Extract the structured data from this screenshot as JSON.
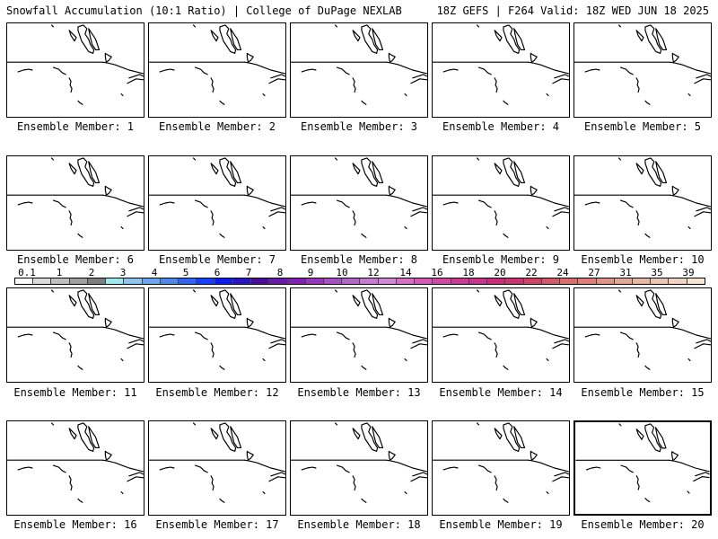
{
  "header": {
    "title": "Snowfall Accumulation (10:1 Ratio) | College of DuPage NEXLAB",
    "run_info": "18Z GEFS | F264 Valid: 18Z WED JUN 18 2025"
  },
  "panels": [
    {
      "label": "Ensemble Member: 1"
    },
    {
      "label": "Ensemble Member: 2"
    },
    {
      "label": "Ensemble Member: 3"
    },
    {
      "label": "Ensemble Member: 4"
    },
    {
      "label": "Ensemble Member: 5"
    },
    {
      "label": "Ensemble Member: 6"
    },
    {
      "label": "Ensemble Member: 7"
    },
    {
      "label": "Ensemble Member: 8"
    },
    {
      "label": "Ensemble Member: 9"
    },
    {
      "label": "Ensemble Member: 10"
    },
    {
      "label": "Ensemble Member: 11"
    },
    {
      "label": "Ensemble Member: 12"
    },
    {
      "label": "Ensemble Member: 13"
    },
    {
      "label": "Ensemble Member: 14"
    },
    {
      "label": "Ensemble Member: 15"
    },
    {
      "label": "Ensemble Member: 16"
    },
    {
      "label": "Ensemble Member: 17"
    },
    {
      "label": "Ensemble Member: 18"
    },
    {
      "label": "Ensemble Member: 19"
    },
    {
      "label": "Ensemble Member: 20"
    }
  ],
  "colorbar": {
    "labels": [
      "0.1",
      "1",
      "2",
      "3",
      "4",
      "5",
      "6",
      "7",
      "8",
      "9",
      "10",
      "12",
      "14",
      "16",
      "18",
      "20",
      "22",
      "24",
      "27",
      "31",
      "35",
      "39"
    ],
    "colors": [
      "#ffffff",
      "#dcdcdc",
      "#c0c0c0",
      "#a0a0a0",
      "#7e7e7e",
      "#9ee8f0",
      "#8cc6f0",
      "#6ea6ec",
      "#4f88ea",
      "#2f66f2",
      "#1640ff",
      "#0a1ef0",
      "#2a14c8",
      "#4b0e9a",
      "#6a1aa8",
      "#8420b0",
      "#9a36b8",
      "#a850c0",
      "#b466c8",
      "#c87ad4",
      "#d488d8",
      "#d66fc8",
      "#d45ab8",
      "#d048a8",
      "#cc3a98",
      "#c8348c",
      "#c82e7e",
      "#cc3470",
      "#d04468",
      "#d45a6a",
      "#d8706e",
      "#dc8078",
      "#e09484",
      "#e4a894",
      "#e8b8a4",
      "#ecc6b2",
      "#f0d4c0",
      "#f6e4d4"
    ]
  }
}
